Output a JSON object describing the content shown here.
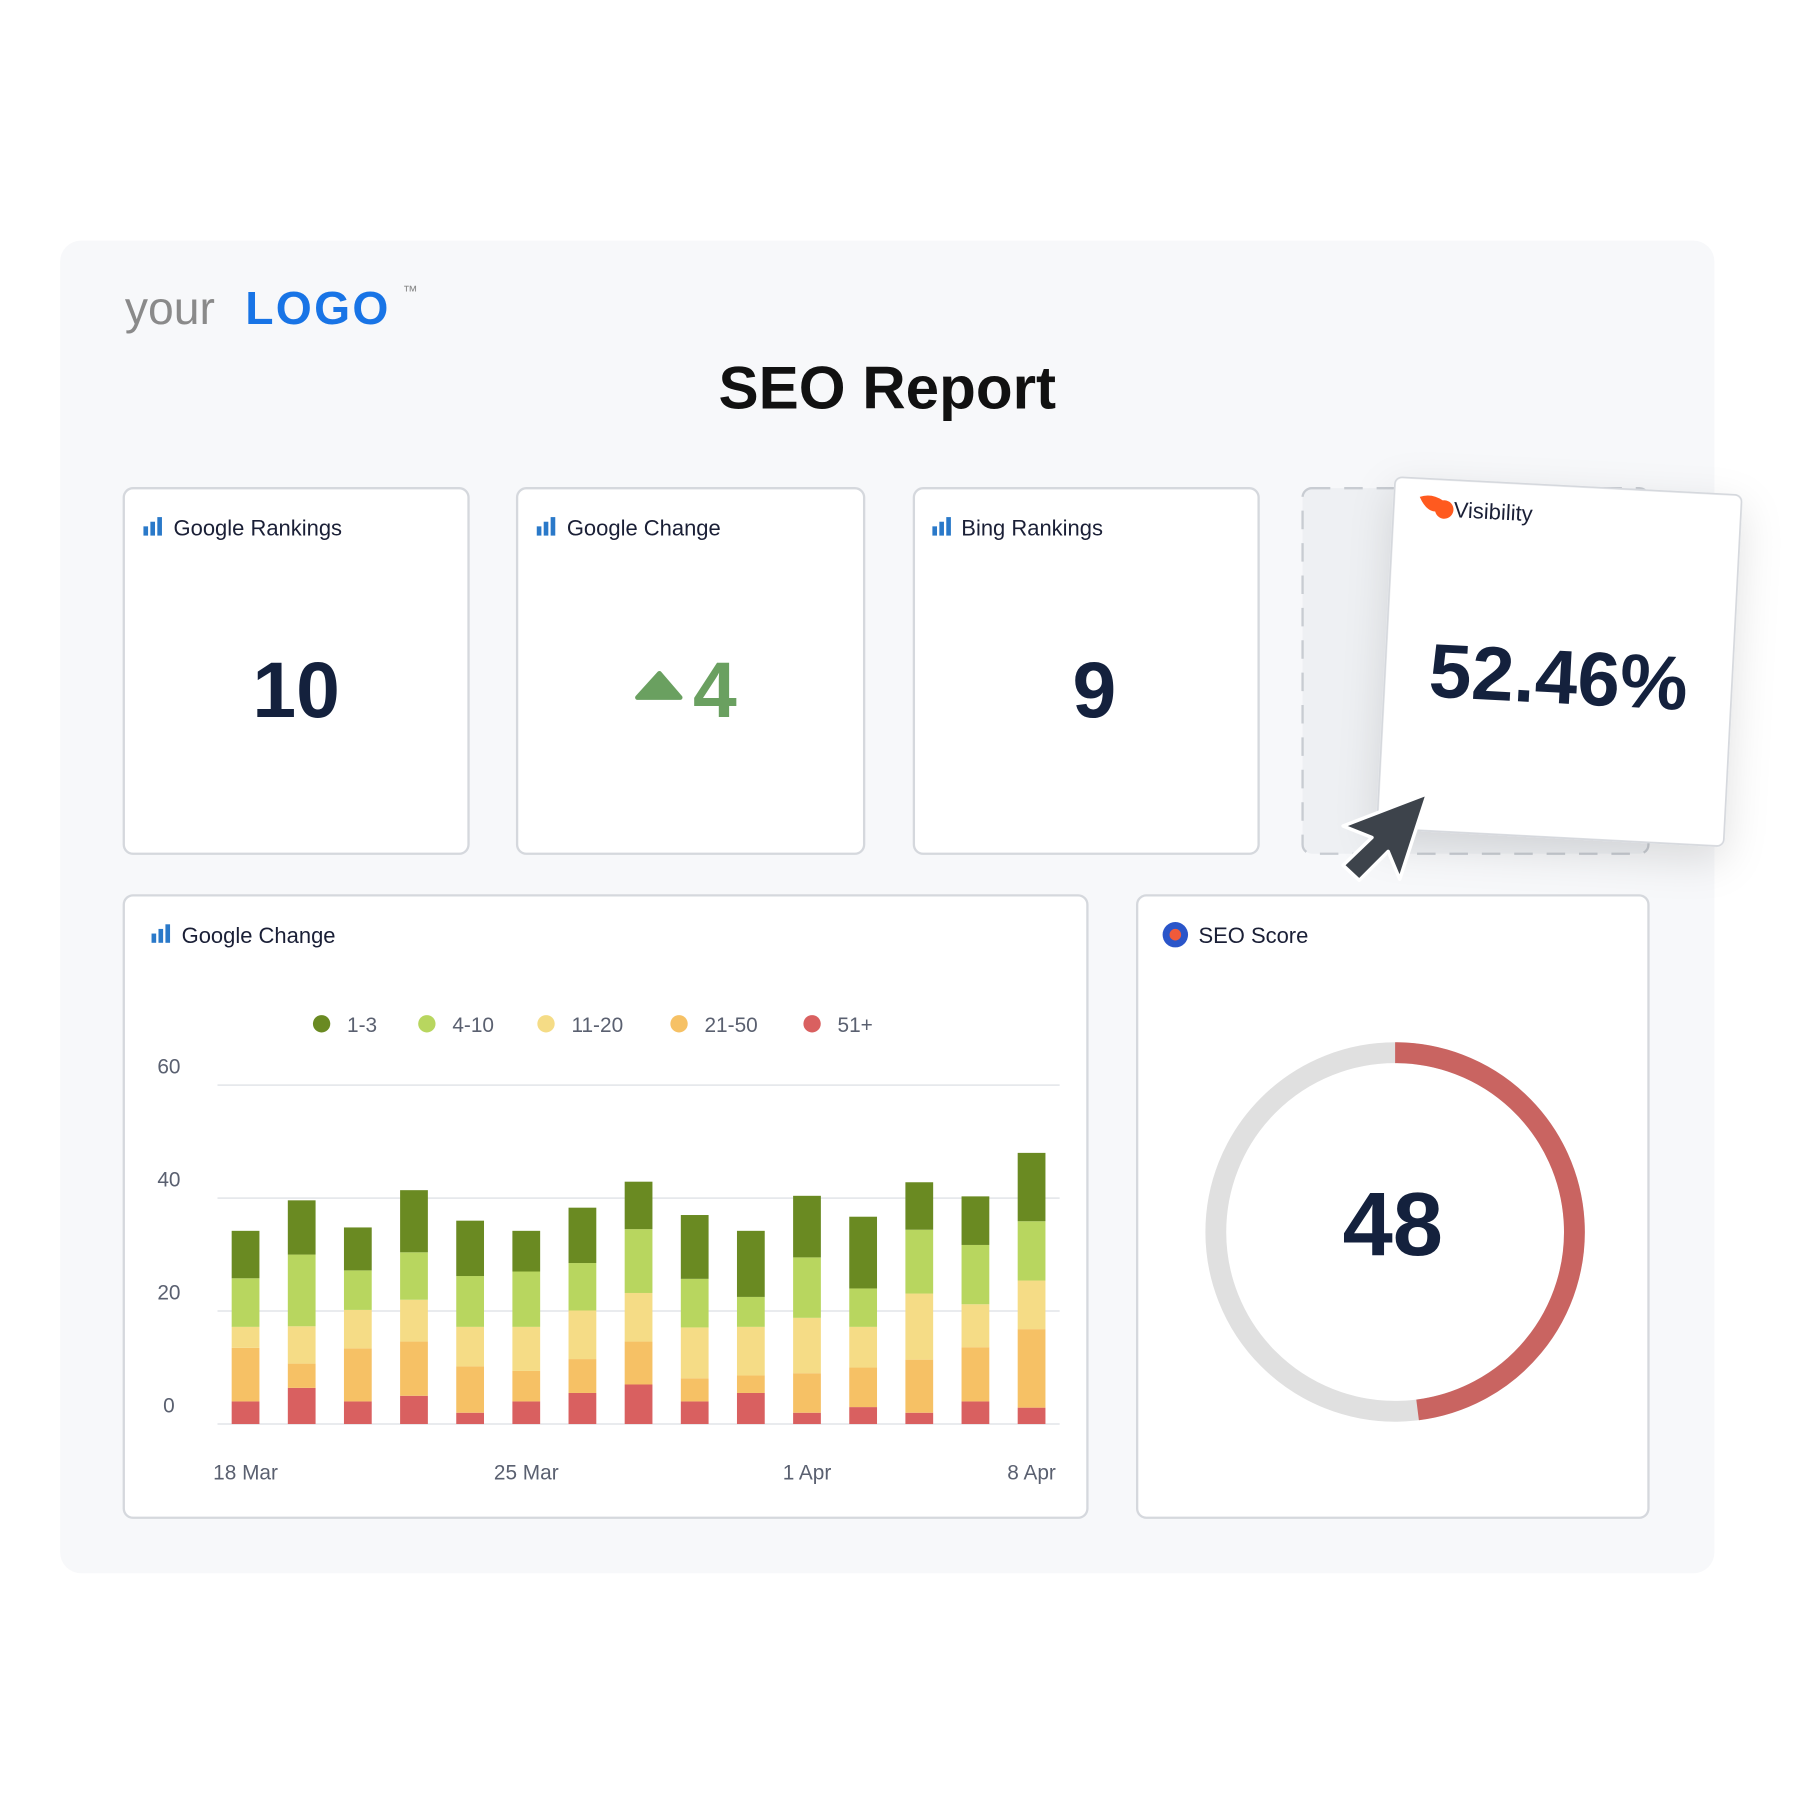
{
  "header": {
    "logo_prefix": "your",
    "logo": "LOGO",
    "trademark": "™",
    "title": "SEO Report"
  },
  "cards": [
    {
      "title": "Google Rankings",
      "value": 10
    },
    {
      "title": "Google Change",
      "value": 4
    },
    {
      "title": "Bing Rankings",
      "value": 9
    },
    {
      "title": "Visibility",
      "value": 52.46,
      "value_label": "52.46%"
    }
  ],
  "chart_data": {
    "type": "bar",
    "stacked": true,
    "title": "Google Change",
    "categories": [
      "18 Mar",
      null,
      null,
      null,
      null,
      "25 Mar",
      null,
      null,
      null,
      null,
      "1 Apr",
      null,
      null,
      null,
      "8 Apr"
    ],
    "series": [
      {
        "name": "1-3",
        "color": "#6a8a22",
        "values": [
          8.4,
          9.6,
          7.6,
          11,
          9.8,
          7.2,
          9.8,
          8.4,
          11.3,
          11.7,
          10.9,
          12.7,
          8.4,
          8.6,
          12.1
        ]
      },
      {
        "name": "4-10",
        "color": "#b8d65f",
        "values": [
          8.6,
          12.7,
          7,
          8.4,
          9,
          9.8,
          8.4,
          11.3,
          8.6,
          5.3,
          10.7,
          6.8,
          11.3,
          10.5,
          10.5
        ]
      },
      {
        "name": "11-20",
        "color": "#f5dc86",
        "values": [
          3.7,
          6.6,
          6.8,
          7.4,
          7,
          7.8,
          8.6,
          8.6,
          9,
          8.6,
          9.8,
          7.2,
          11.7,
          7.6,
          8.6
        ]
      },
      {
        "name": "21-50",
        "color": "#f6c165",
        "values": [
          9.5,
          4.3,
          9.4,
          9.6,
          8.2,
          5.4,
          6,
          7.6,
          4.1,
          3.1,
          7,
          7,
          9.4,
          9.6,
          13.9
        ]
      },
      {
        "name": "51+",
        "color": "#d96060",
        "values": [
          4,
          6.4,
          4,
          5,
          2,
          4,
          5.5,
          7,
          4,
          5.5,
          2,
          3,
          2,
          4,
          2.9
        ]
      }
    ],
    "ylim": [
      0,
      60
    ],
    "yticks": [
      0,
      20,
      40,
      60
    ],
    "grid": true,
    "legend": "top"
  },
  "score": {
    "title": "SEO Score",
    "value": 48,
    "max": 100,
    "color": "#c96461"
  }
}
